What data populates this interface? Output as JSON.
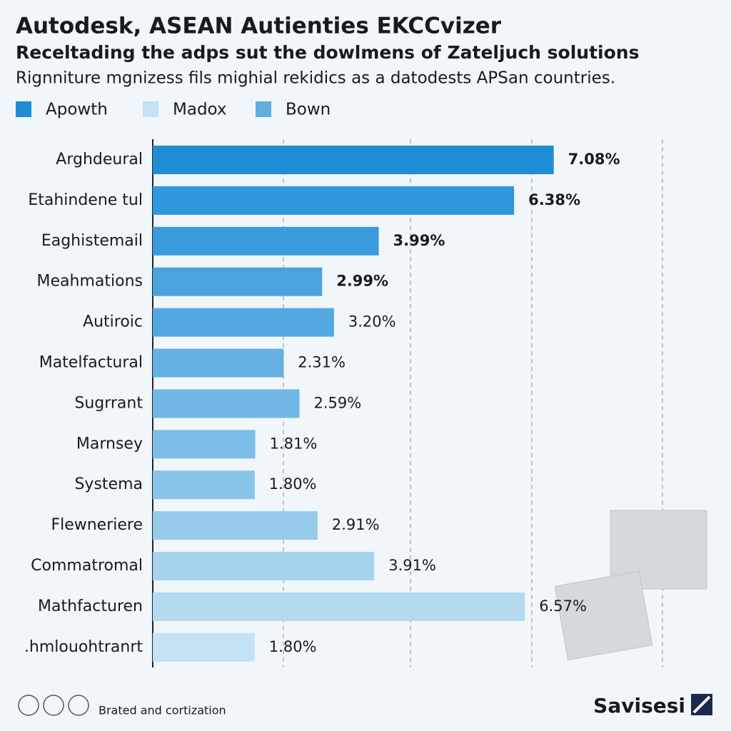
{
  "chart_data": {
    "type": "bar",
    "orientation": "horizontal",
    "title": "Autodesk, ASEAN Autienties EKCCvizer",
    "subtitle": "Receltading the adps sut the dowlmens of Zateljuch solutions",
    "description": "Rignniture mgnizess fils mighial rekidics as a datodests APSan countries.",
    "legend": [
      {
        "name": "Apowth",
        "color": "#1f8dd6"
      },
      {
        "name": "Madox",
        "color": "#c3e2f5"
      },
      {
        "name": "Bown",
        "color": "#5eaee2"
      }
    ],
    "categories": [
      "Arghdeural",
      "Etahindene tul",
      "Eaghistemail",
      "Meahmations",
      "Autiroic",
      "Matelfactural",
      "Sugrrant",
      "Marnsey",
      "Systema",
      "Flewneriere",
      "Commatromal",
      "Mathfacturen",
      ".hmlouohtranrt"
    ],
    "values": [
      7.08,
      6.38,
      3.99,
      2.99,
      3.2,
      2.31,
      2.59,
      1.81,
      1.8,
      2.91,
      3.91,
      6.57,
      1.8
    ],
    "value_labels": [
      "7.08%",
      "6.38%",
      "3.99%",
      "2.99%",
      "3.20%",
      "2.31%",
      "2.59%",
      "1.81%",
      "1.80%",
      "2.91%",
      "3.91%",
      "6.57%",
      "1.80%"
    ],
    "colors": [
      "#1f8dd6",
      "#2f97db",
      "#3a9bdc",
      "#4aa3df",
      "#54a8e0",
      "#64b1e3",
      "#70b7e5",
      "#7dbee8",
      "#89c4ea",
      "#97cbec",
      "#a5d3ef",
      "#b3daf1",
      "#c3e2f5"
    ],
    "xlim": [
      0,
      9
    ],
    "footer": "Brated and cortization",
    "brand": "Savisesi"
  }
}
